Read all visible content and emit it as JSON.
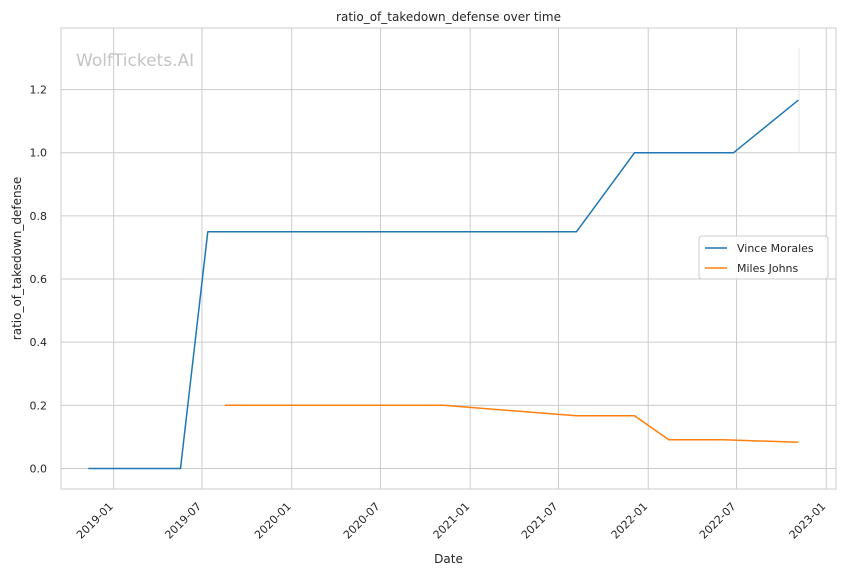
{
  "chart_data": {
    "type": "line",
    "title": "ratio_of_takedown_defense over time",
    "xlabel": "Date",
    "ylabel": "ratio_of_takedown_defense",
    "watermark": "WolfTickets.AI",
    "x_ticks": [
      "2019-01",
      "2019-07",
      "2020-01",
      "2020-07",
      "2021-01",
      "2021-07",
      "2022-01",
      "2022-07",
      "2023-01"
    ],
    "y_ticks": [
      "0.0",
      "0.2",
      "0.4",
      "0.6",
      "0.8",
      "1.0",
      "1.2"
    ],
    "ylim": [
      -0.065,
      1.395
    ],
    "xlim": [
      "2018-09-15",
      "2023-01-21"
    ],
    "grid": true,
    "legend_position": "center-right",
    "series": [
      {
        "name": "Vince Morales",
        "color": "#1f77b4",
        "x": [
          "2018-11-10",
          "2019-05-18",
          "2019-07-13",
          "2021-08-07",
          "2021-12-04",
          "2022-06-25",
          "2022-11-05"
        ],
        "y": [
          0.0,
          0.0,
          0.75,
          0.75,
          1.0,
          1.0,
          1.1667
        ]
      },
      {
        "name": "Miles Johns",
        "color": "#ff7f0e",
        "x": [
          "2019-08-17",
          "2020-11-07",
          "2021-08-07",
          "2021-12-04",
          "2022-02-12",
          "2022-06-04",
          "2022-11-05"
        ],
        "y": [
          0.2,
          0.2,
          0.1667,
          0.1667,
          0.0909,
          0.0909,
          0.0833
        ]
      }
    ]
  }
}
